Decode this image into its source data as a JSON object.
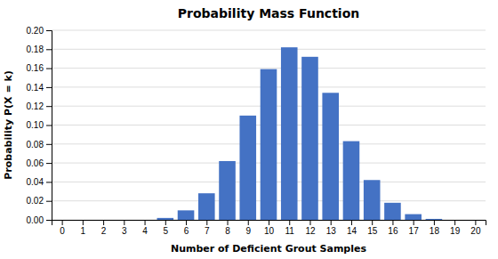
{
  "chart_data": {
    "type": "bar",
    "title": "Probability Mass Function",
    "xlabel": "Number of Deficient Grout Samples",
    "ylabel": "Probability P(X = k)",
    "x": [
      0,
      1,
      2,
      3,
      4,
      5,
      6,
      7,
      8,
      9,
      10,
      11,
      12,
      13,
      14,
      15,
      16,
      17,
      18,
      19,
      20
    ],
    "values": [
      0.0,
      0.0,
      0.0,
      0.0,
      0.0,
      0.002,
      0.01,
      0.028,
      0.062,
      0.11,
      0.159,
      0.182,
      0.172,
      0.134,
      0.083,
      0.042,
      0.018,
      0.006,
      0.001,
      0.0,
      0.0
    ],
    "color": "#4472C4",
    "xlim": [
      -0.5,
      20.5
    ],
    "xticks": [
      0,
      1,
      2,
      3,
      4,
      5,
      6,
      7,
      8,
      9,
      10,
      11,
      12,
      13,
      14,
      15,
      16,
      17,
      18,
      19,
      20
    ],
    "ylim": [
      0,
      0.2
    ],
    "yticks": [
      {
        "value": 0.0,
        "label": "0.00"
      },
      {
        "value": 0.02,
        "label": "0.02"
      },
      {
        "value": 0.04,
        "label": "0.04"
      },
      {
        "value": 0.06,
        "label": "0.06"
      },
      {
        "value": 0.08,
        "label": "0.08"
      },
      {
        "value": 0.1,
        "label": "0.10"
      },
      {
        "value": 0.12,
        "label": "0.12"
      },
      {
        "value": 0.14,
        "label": "0.14"
      },
      {
        "value": 0.16,
        "label": "0.16"
      },
      {
        "value": 0.18,
        "label": "0.18"
      },
      {
        "value": 0.2,
        "label": "0.20"
      }
    ],
    "grid": true
  }
}
